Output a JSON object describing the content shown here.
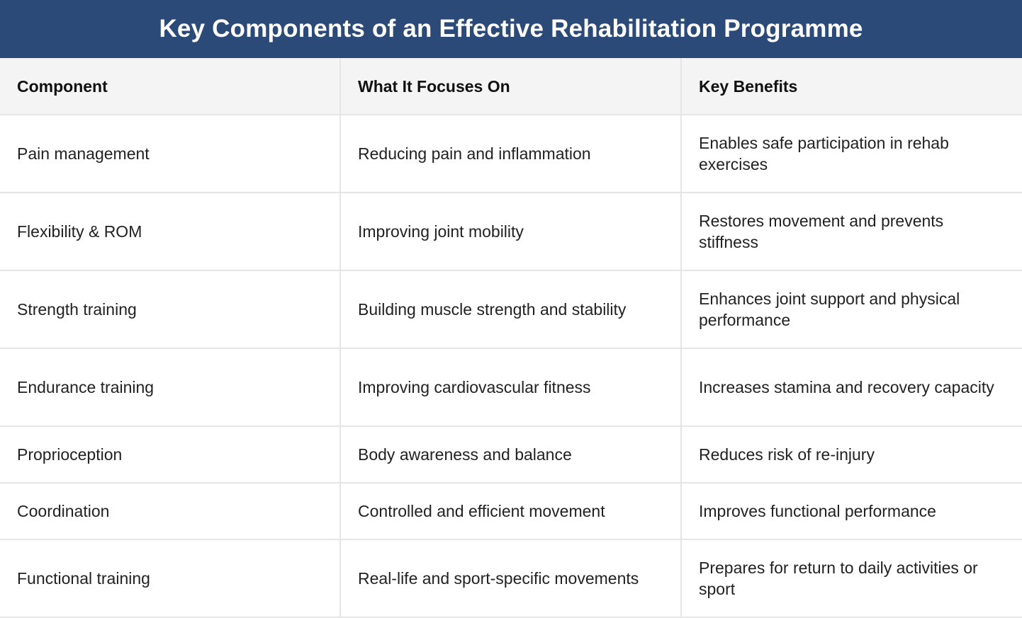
{
  "title": "Key Components of an Effective Rehabilitation Programme",
  "table": {
    "headers": [
      "Component",
      "What It Focuses On",
      "Key Benefits"
    ],
    "rows": [
      [
        "Pain management",
        "Reducing pain and inflammation",
        "Enables safe participation in rehab exercises"
      ],
      [
        "Flexibility & ROM",
        "Improving joint mobility",
        "Restores movement and prevents stiffness"
      ],
      [
        "Strength training",
        "Building muscle strength and stability",
        "Enhances joint support and physical performance"
      ],
      [
        "Endurance training",
        "Improving cardiovascular fitness",
        "Increases stamina and recovery capacity"
      ],
      [
        "Proprioception",
        "Body awareness and balance",
        "Reduces risk of re-injury"
      ],
      [
        "Coordination",
        "Controlled and efficient movement",
        "Improves functional performance"
      ],
      [
        "Functional training",
        "Real-life and sport-specific movements",
        "Prepares for return to daily activities or sport"
      ]
    ]
  },
  "colors": {
    "title_background": "#2c4a78",
    "header_background": "#f4f4f4",
    "border": "#e5e5e5"
  }
}
